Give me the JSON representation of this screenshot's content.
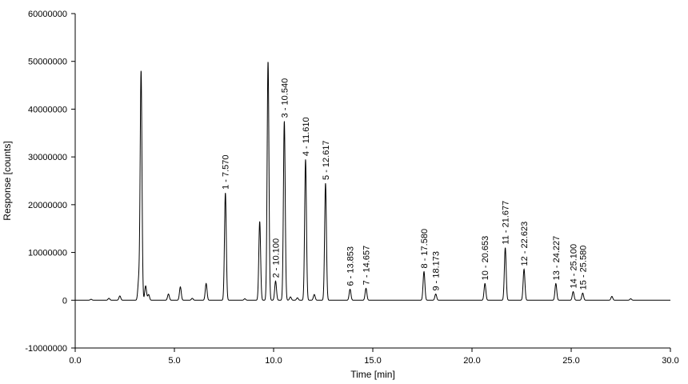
{
  "chart_data": {
    "type": "line",
    "title": "",
    "xlabel": "Time [min]",
    "ylabel": "Response [counts]",
    "xlim": [
      0,
      30
    ],
    "ylim": [
      -10000000,
      60000000
    ],
    "x_ticks": [
      0,
      5,
      10,
      15,
      20,
      25,
      30
    ],
    "x_tick_labels": [
      "0.0",
      "5.0",
      "10.0",
      "15.0",
      "20.0",
      "25.0",
      "30.0"
    ],
    "y_ticks": [
      -10000000,
      0,
      10000000,
      20000000,
      30000000,
      40000000,
      50000000,
      60000000
    ],
    "y_tick_labels": [
      "-10000000",
      "0",
      "10000000",
      "20000000",
      "30000000",
      "40000000",
      "50000000",
      "60000000"
    ],
    "grid": false,
    "line_color": "#000000",
    "baseline": 0,
    "labeled_peaks": [
      {
        "label": "1 - 7.570",
        "rt": 7.57,
        "height": 22500000
      },
      {
        "label": "2 - 10.100",
        "rt": 10.1,
        "height": 4000000
      },
      {
        "label": "3 - 10.540",
        "rt": 10.54,
        "height": 37500000
      },
      {
        "label": "4 - 11.610",
        "rt": 11.61,
        "height": 29500000
      },
      {
        "label": "5 - 12.617",
        "rt": 12.617,
        "height": 24500000
      },
      {
        "label": "6 - 13.853",
        "rt": 13.853,
        "height": 2300000
      },
      {
        "label": "7 - 14.657",
        "rt": 14.657,
        "height": 2500000
      },
      {
        "label": "8 - 17.580",
        "rt": 17.58,
        "height": 6000000
      },
      {
        "label": "9 - 18.173",
        "rt": 18.173,
        "height": 1300000
      },
      {
        "label": "10 - 20.653",
        "rt": 20.653,
        "height": 3500000
      },
      {
        "label": "11 - 21.677",
        "rt": 21.677,
        "height": 11000000
      },
      {
        "label": "12 - 22.623",
        "rt": 22.623,
        "height": 6500000
      },
      {
        "label": "13 - 24.227",
        "rt": 24.227,
        "height": 3500000
      },
      {
        "label": "14 - 25.100",
        "rt": 25.1,
        "height": 1800000
      },
      {
        "label": "15 - 25.580",
        "rt": 25.58,
        "height": 1500000
      }
    ],
    "unlabeled_peaks": [
      {
        "rt": 0.8,
        "height": 200000
      },
      {
        "rt": 1.7,
        "height": 400000
      },
      {
        "rt": 2.25,
        "height": 900000
      },
      {
        "rt": 3.2,
        "height": 4000000
      },
      {
        "rt": 3.32,
        "height": 48000000
      },
      {
        "rt": 3.55,
        "height": 3000000
      },
      {
        "rt": 3.7,
        "height": 1200000
      },
      {
        "rt": 4.7,
        "height": 1300000
      },
      {
        "rt": 5.3,
        "height": 2800000
      },
      {
        "rt": 5.9,
        "height": 400000
      },
      {
        "rt": 6.6,
        "height": 3500000
      },
      {
        "rt": 8.55,
        "height": 300000
      },
      {
        "rt": 9.3,
        "height": 16500000
      },
      {
        "rt": 9.72,
        "height": 50000000
      },
      {
        "rt": 10.85,
        "height": 700000
      },
      {
        "rt": 11.2,
        "height": 500000
      },
      {
        "rt": 12.05,
        "height": 1200000
      },
      {
        "rt": 27.05,
        "height": 800000
      },
      {
        "rt": 28.0,
        "height": 300000
      }
    ]
  }
}
